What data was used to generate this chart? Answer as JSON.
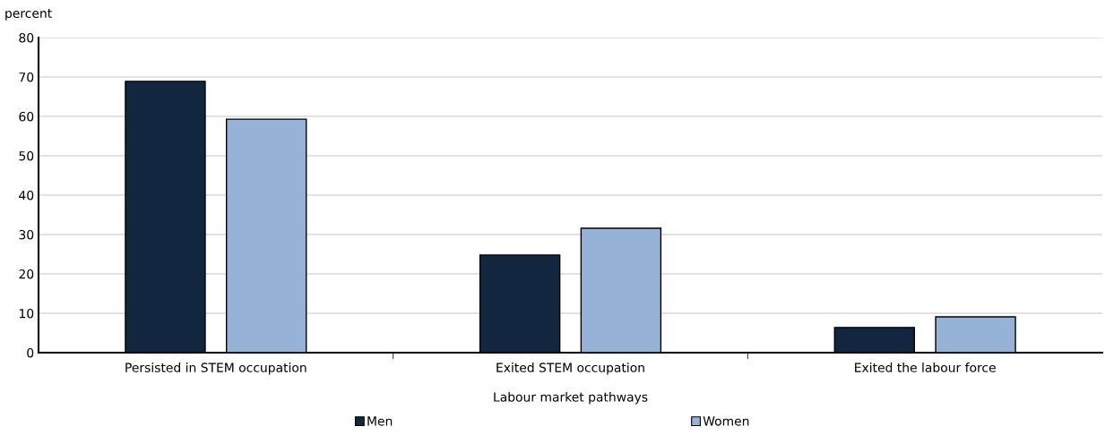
{
  "chart_data": {
    "type": "bar",
    "ylabel": "percent",
    "xlabel": "Labour market pathways",
    "categories": [
      "Persisted in STEM occupation",
      "Exited STEM occupation",
      "Exited the labour force"
    ],
    "series": [
      {
        "name": "Men",
        "color": "#12263f",
        "values": [
          68.9,
          24.8,
          6.4
        ]
      },
      {
        "name": "Women",
        "color": "#96b3d7",
        "values": [
          59.3,
          31.6,
          9.1
        ]
      }
    ],
    "ylim": [
      0,
      80
    ],
    "yticks": [
      0,
      10,
      20,
      30,
      40,
      50,
      60,
      70,
      80
    ],
    "grid": "y",
    "legend": "bottom"
  }
}
